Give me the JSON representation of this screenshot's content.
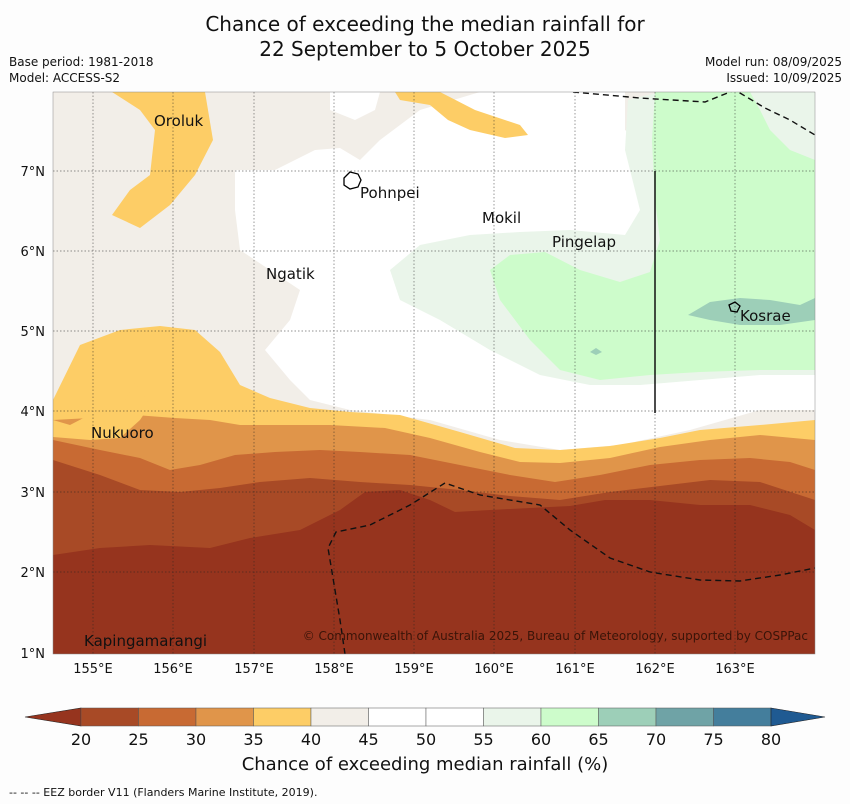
{
  "title": {
    "line1": "Chance of exceeding the median rainfall for",
    "line2": "22 September to 5 October 2025"
  },
  "meta": {
    "base_period": "Base period: 1981-2018",
    "model": "Model: ACCESS-S2",
    "model_run": "Model run: 08/09/2025",
    "issued": "Issued: 10/09/2025"
  },
  "map": {
    "x_ticks": [
      "155°E",
      "156°E",
      "157°E",
      "158°E",
      "159°E",
      "160°E",
      "161°E",
      "162°E",
      "163°E"
    ],
    "y_ticks": [
      "7°N",
      "6°N",
      "5°N",
      "4°N",
      "3°N",
      "2°N",
      "1°N"
    ],
    "places": [
      {
        "name": "Oroluk"
      },
      {
        "name": "Pohnpei"
      },
      {
        "name": "Mokil"
      },
      {
        "name": "Pingelap"
      },
      {
        "name": "Ngatik"
      },
      {
        "name": "Kosrae"
      },
      {
        "name": "Nukuoro"
      },
      {
        "name": "Kapingamarangi"
      }
    ],
    "copyright": "© Commonwealth of Australia 2025, Bureau of Meteorology, supported by COSPPac"
  },
  "colorbar": {
    "ticks": [
      "20",
      "25",
      "30",
      "35",
      "40",
      "45",
      "50",
      "55",
      "60",
      "65",
      "70",
      "75",
      "80"
    ],
    "colors": [
      "#a84a26",
      "#c86a33",
      "#e0954a",
      "#fdcd66",
      "#f2eee8",
      "#ffffff",
      "#ffffff",
      "#eaf5ea",
      "#cdfccb",
      "#9dcfb8",
      "#6fa3a6",
      "#447e9c"
    ],
    "under_color": "#96341e",
    "over_color": "#1f5a92",
    "label": "Chance of exceeding median rainfall (%)"
  },
  "footer": "-- -- -- EEZ border V11 (Flanders Marine Institute, 2019)."
}
